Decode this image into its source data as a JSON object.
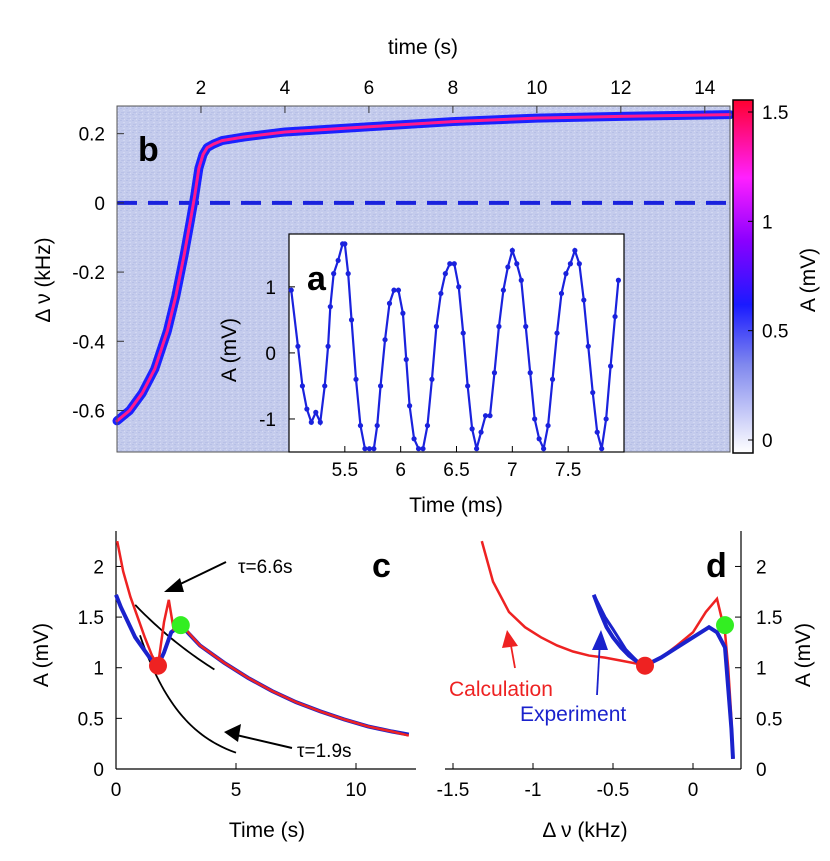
{
  "chart_data": [
    {
      "panel": "b",
      "type": "heatmap",
      "letter": "b",
      "x_top_label": "time (s)",
      "x_top_ticks": [
        2,
        4,
        6,
        8,
        10,
        12,
        14
      ],
      "xlim": [
        0,
        14.6
      ],
      "ylabel": "Δ ν (kHz)",
      "y_ticks": [
        0.2,
        0,
        -0.2,
        -0.4,
        -0.6
      ],
      "ylim": [
        -0.72,
        0.28
      ],
      "zero_line": 0,
      "colorbar": {
        "label": "A (mV)",
        "ticks": [
          1.5,
          1,
          0.5,
          0
        ],
        "range": [
          0,
          1.5
        ]
      },
      "trace": {
        "t": [
          0,
          0.3,
          0.6,
          0.9,
          1.2,
          1.4,
          1.6,
          1.75,
          1.85,
          1.95,
          2.05,
          2.15,
          2.3,
          2.5,
          3.0,
          4.0,
          6.0,
          8.0,
          10.0,
          12.0,
          14.6
        ],
        "dnu": [
          -0.63,
          -0.6,
          -0.55,
          -0.48,
          -0.37,
          -0.27,
          -0.15,
          -0.05,
          0.02,
          0.1,
          0.14,
          0.16,
          0.17,
          0.18,
          0.19,
          0.205,
          0.22,
          0.235,
          0.245,
          0.25,
          0.255
        ]
      }
    },
    {
      "panel": "a",
      "type": "line",
      "letter": "a",
      "xlabel": "Time (ms)",
      "ylabel": "A (mV)",
      "x_ticks": [
        5.5,
        6,
        6.5,
        7,
        7.5
      ],
      "y_ticks": [
        1,
        0,
        -1
      ],
      "xlim": [
        5.0,
        8.0
      ],
      "ylim": [
        -1.5,
        1.8
      ],
      "series": [
        {
          "name": "A",
          "x": [
            5.02,
            5.08,
            5.12,
            5.16,
            5.2,
            5.24,
            5.28,
            5.32,
            5.35,
            5.37,
            5.4,
            5.44,
            5.48,
            5.5,
            5.53,
            5.56,
            5.6,
            5.64,
            5.68,
            5.72,
            5.76,
            5.79,
            5.82,
            5.86,
            5.9,
            5.94,
            5.98,
            6.02,
            6.05,
            6.08,
            6.12,
            6.16,
            6.2,
            6.24,
            6.28,
            6.32,
            6.36,
            6.4,
            6.44,
            6.48,
            6.52,
            6.56,
            6.6,
            6.64,
            6.68,
            6.72,
            6.76,
            6.8,
            6.84,
            6.88,
            6.92,
            6.96,
            7.0,
            7.04,
            7.08,
            7.12,
            7.16,
            7.2,
            7.24,
            7.28,
            7.32,
            7.36,
            7.4,
            7.44,
            7.48,
            7.52,
            7.56,
            7.6,
            7.64,
            7.68,
            7.72,
            7.76,
            7.8,
            7.84,
            7.88,
            7.92,
            7.95
          ],
          "y": [
            0.95,
            0.1,
            -0.5,
            -0.85,
            -1.05,
            -0.9,
            -1.05,
            -0.5,
            0.1,
            0.7,
            1.2,
            1.4,
            1.65,
            1.65,
            1.2,
            0.5,
            -0.4,
            -1.1,
            -1.45,
            -1.45,
            -1.45,
            -1.1,
            -0.5,
            0.2,
            0.75,
            0.95,
            0.95,
            0.6,
            -0.1,
            -0.8,
            -1.3,
            -1.45,
            -1.45,
            -1.1,
            -0.4,
            0.4,
            0.9,
            1.2,
            1.35,
            1.35,
            1.0,
            0.3,
            -0.5,
            -1.15,
            -1.45,
            -1.2,
            -0.95,
            -0.95,
            -0.3,
            0.4,
            0.95,
            1.3,
            1.55,
            1.35,
            1.1,
            0.4,
            -0.3,
            -1.0,
            -1.3,
            -1.45,
            -1.1,
            -0.4,
            0.3,
            0.9,
            1.2,
            1.35,
            1.55,
            1.35,
            0.8,
            0.1,
            -0.6,
            -1.2,
            -1.45,
            -1.0,
            -0.2,
            0.55,
            1.1
          ]
        }
      ]
    },
    {
      "panel": "c",
      "type": "line",
      "letter": "c",
      "xlabel": "Time (s)",
      "ylabel": "A (mV)",
      "x_ticks": [
        0,
        5,
        10
      ],
      "y_ticks": [
        2,
        1.5,
        1,
        0.5,
        0
      ],
      "xlim": [
        0,
        12.5
      ],
      "ylim": [
        0,
        2.35
      ],
      "annotations": [
        {
          "text": "τ=6.6s",
          "at": [
            2.2,
            1.75
          ]
        },
        {
          "text": "τ=1.9s",
          "at": [
            4.6,
            0.35
          ]
        }
      ],
      "series": [
        {
          "name": "Calculation",
          "color": "#ee2222",
          "x": [
            0.05,
            0.3,
            0.6,
            0.9,
            1.2,
            1.5,
            1.75,
            2.0,
            2.2,
            2.4,
            2.7,
            3.5,
            4.5,
            5.5,
            6.5,
            7.5,
            8.5,
            9.5,
            10.5,
            11.5,
            12.2
          ],
          "y": [
            2.25,
            1.95,
            1.7,
            1.5,
            1.3,
            1.12,
            1.02,
            1.45,
            1.67,
            1.38,
            1.43,
            1.22,
            1.05,
            0.9,
            0.77,
            0.66,
            0.57,
            0.49,
            0.42,
            0.37,
            0.33
          ]
        },
        {
          "name": "Experiment",
          "color": "#1a22cc",
          "x": [
            0.0,
            0.2,
            0.5,
            0.8,
            1.1,
            1.4,
            1.75,
            2.0,
            2.3,
            2.7,
            3.5,
            4.5,
            5.5,
            6.5,
            7.5,
            8.5,
            9.5,
            10.5,
            11.5,
            12.2
          ],
          "y": [
            1.72,
            1.6,
            1.45,
            1.3,
            1.2,
            1.1,
            1.02,
            1.15,
            1.35,
            1.42,
            1.22,
            1.05,
            0.9,
            0.77,
            0.66,
            0.57,
            0.49,
            0.42,
            0.37,
            0.34
          ]
        },
        {
          "name": "fit τ=6.6s",
          "color": "#000000",
          "tau": 6.6,
          "A0": 1.95,
          "t0": 0.9
        },
        {
          "name": "fit τ=1.9s",
          "color": "#000000",
          "tau": 1.9,
          "A0": 1.35,
          "t0": 1.8
        }
      ],
      "markers": [
        {
          "name": "red-dot",
          "x": 1.75,
          "y": 1.02,
          "color": "#ee2222"
        },
        {
          "name": "green-dot",
          "x": 2.7,
          "y": 1.42,
          "color": "#33ee22"
        }
      ]
    },
    {
      "panel": "d",
      "type": "line",
      "letter": "d",
      "xlabel": "Δ ν (kHz)",
      "ylabel": "A (mV)",
      "x_ticks": [
        -1.5,
        -1,
        -0.5,
        0
      ],
      "y_ticks": [
        2,
        1.5,
        1,
        0.5,
        0
      ],
      "xlim": [
        -1.55,
        0.3
      ],
      "ylim": [
        0,
        2.35
      ],
      "labels": [
        {
          "text": "Calculation",
          "color": "#ee2222"
        },
        {
          "text": "Experiment",
          "color": "#1a22cc"
        }
      ],
      "series": [
        {
          "name": "Calculation",
          "color": "#ee2222",
          "x": [
            -1.32,
            -1.25,
            -1.15,
            -1.05,
            -0.95,
            -0.85,
            -0.75,
            -0.65,
            -0.55,
            -0.45,
            -0.35,
            -0.3,
            -0.2,
            -0.1,
            0.0,
            0.08,
            0.15,
            0.2,
            0.22,
            0.24,
            0.25
          ],
          "y": [
            2.25,
            1.85,
            1.55,
            1.4,
            1.3,
            1.22,
            1.16,
            1.12,
            1.1,
            1.07,
            1.04,
            1.02,
            1.1,
            1.22,
            1.35,
            1.55,
            1.68,
            1.35,
            1.0,
            0.5,
            0.1
          ]
        },
        {
          "name": "Experiment",
          "color": "#1a22cc",
          "x": [
            -0.62,
            -0.58,
            -0.54,
            -0.5,
            -0.45,
            -0.4,
            -0.34,
            -0.3,
            -0.2,
            -0.1,
            0.0,
            0.1,
            0.15,
            0.2,
            0.22,
            0.24,
            0.25
          ],
          "y": [
            1.72,
            1.55,
            1.4,
            1.3,
            1.2,
            1.12,
            1.05,
            1.02,
            1.1,
            1.2,
            1.3,
            1.4,
            1.35,
            1.2,
            0.8,
            0.4,
            0.1
          ]
        }
      ],
      "markers": [
        {
          "name": "red-dot",
          "x": -0.3,
          "y": 1.02,
          "color": "#ee2222"
        },
        {
          "name": "green-dot",
          "x": 0.2,
          "y": 1.42,
          "color": "#33ee22"
        }
      ]
    }
  ]
}
